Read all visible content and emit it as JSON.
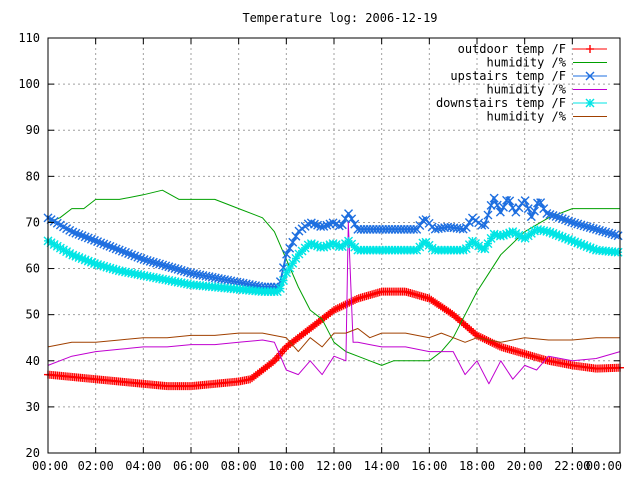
{
  "chart_data": {
    "type": "line",
    "title": "Temperature log: 2006-12-19",
    "xlabel": "",
    "ylabel": "",
    "x_ticks": [
      "00:00",
      "02:00",
      "04:00",
      "06:00",
      "08:00",
      "10:00",
      "12:00",
      "14:00",
      "16:00",
      "18:00",
      "20:00",
      "22:00",
      "00:00"
    ],
    "y_ticks": [
      20,
      30,
      40,
      50,
      60,
      70,
      80,
      90,
      100,
      110
    ],
    "xlim_hours": [
      0,
      24
    ],
    "ylim": [
      20,
      110
    ],
    "grid": true,
    "legend_position": "top-right",
    "series": [
      {
        "name": "outdoor temp /F",
        "color": "#ff0000",
        "marker": "plus",
        "hours": [
          0,
          1,
          2,
          3,
          4,
          5,
          6,
          7,
          8,
          8.5,
          9,
          9.5,
          10,
          11,
          12,
          13,
          14,
          15,
          16,
          17,
          18,
          19,
          20,
          21,
          22,
          23,
          24
        ],
        "values": [
          37,
          36.5,
          36,
          35.5,
          35,
          34.5,
          34.5,
          35,
          35.5,
          36,
          38,
          40,
          43,
          47,
          51,
          53.5,
          55,
          55,
          53.5,
          50,
          45.5,
          43,
          41.5,
          40,
          39,
          38.3,
          38.5
        ]
      },
      {
        "name": "humidity /%",
        "color": "#00a000",
        "marker": "none",
        "hours": [
          0,
          0.5,
          1,
          1.5,
          2,
          3,
          4,
          4.8,
          5.5,
          6,
          7,
          7.5,
          8,
          9,
          9.5,
          10,
          10.5,
          11,
          11.5,
          12,
          12.5,
          13,
          13.5,
          14,
          14.5,
          15,
          15.5,
          16,
          16.5,
          17,
          17.5,
          18,
          18.5,
          19,
          20,
          21,
          22,
          23,
          24
        ],
        "values": [
          70,
          71,
          73,
          73,
          75,
          75,
          76,
          77,
          75,
          75,
          75,
          74,
          73,
          71,
          68,
          62,
          56,
          51,
          49,
          44,
          42,
          41,
          40,
          39,
          40,
          40,
          40,
          40,
          42,
          45,
          50,
          55,
          59,
          63,
          68,
          71,
          73,
          73,
          73
        ]
      },
      {
        "name": "upstairs temp /F",
        "color": "#1e6fe0",
        "marker": "x",
        "hours": [
          0,
          1,
          2,
          3,
          4,
          5,
          6,
          7,
          8,
          9,
          9.7,
          10,
          10.5,
          11,
          11.5,
          12,
          12.3,
          12.6,
          13,
          13.5,
          14,
          14.5,
          15,
          15.5,
          15.8,
          16.2,
          16.8,
          17.5,
          17.8,
          18.3,
          18.7,
          19,
          19.3,
          19.6,
          20,
          20.3,
          20.6,
          20.9,
          21.5,
          22,
          23,
          24
        ],
        "values": [
          71,
          68,
          66,
          64,
          62,
          60.5,
          59,
          58,
          57,
          56,
          56,
          63,
          68,
          70,
          69,
          70,
          69,
          72,
          68.5,
          68.5,
          68.5,
          68.5,
          68.5,
          68.5,
          71,
          68.5,
          69,
          68.5,
          71,
          69,
          75.5,
          72,
          75.5,
          72,
          75,
          71,
          75,
          72,
          71,
          70,
          68.5,
          67
        ]
      },
      {
        "name": "humidity /%",
        "color": "#c000d0",
        "marker": "none",
        "hours": [
          0,
          1,
          2,
          3,
          4,
          5,
          6,
          7,
          8,
          9,
          9.5,
          10,
          10.5,
          11,
          11.5,
          12,
          12.5,
          12.6,
          12.8,
          13,
          13.5,
          14,
          15,
          16,
          17,
          17.5,
          18,
          18.5,
          19,
          19.5,
          20,
          20.5,
          21,
          22,
          23,
          24
        ],
        "values": [
          39,
          41,
          42,
          42.5,
          43,
          43,
          43.5,
          43.5,
          44,
          44.5,
          44,
          38,
          37,
          40,
          37,
          41,
          40,
          70,
          44,
          44,
          43.5,
          43,
          43,
          42,
          42,
          37,
          40,
          35,
          40,
          36,
          39,
          38,
          41,
          40,
          40.5,
          42
        ]
      },
      {
        "name": "downstairs temp /F",
        "color": "#00e5e5",
        "marker": "star",
        "hours": [
          0,
          1,
          2,
          3,
          4,
          5,
          6,
          7,
          8,
          9,
          9.7,
          10,
          10.5,
          11,
          11.5,
          12,
          12.3,
          12.6,
          13,
          13.5,
          14,
          14.5,
          15,
          15.5,
          15.8,
          16.2,
          16.8,
          17.5,
          17.8,
          18.3,
          18.7,
          19,
          19.5,
          20,
          20.5,
          21,
          22,
          23,
          24
        ],
        "values": [
          66,
          63,
          61,
          59.5,
          58.5,
          57.5,
          56.5,
          56,
          55.5,
          55,
          55,
          59,
          63,
          65.5,
          64.5,
          65.5,
          64.5,
          66,
          64,
          64,
          64,
          64,
          64,
          64,
          66,
          64,
          64,
          64,
          66,
          64,
          67.5,
          67,
          68,
          66.5,
          68.5,
          68,
          66,
          64,
          63.5
        ]
      },
      {
        "name": "humidity /%",
        "color": "#a04000",
        "marker": "none",
        "hours": [
          0,
          1,
          2,
          3,
          4,
          5,
          6,
          7,
          8,
          9,
          10,
          10.5,
          11,
          11.5,
          12,
          12.5,
          13,
          13.5,
          14,
          15,
          16,
          16.5,
          17,
          17.5,
          18,
          19,
          20,
          21,
          22,
          23,
          24
        ],
        "values": [
          43,
          44,
          44,
          44.5,
          45,
          45,
          45.5,
          45.5,
          46,
          46,
          45,
          42,
          45,
          43,
          46,
          46,
          47,
          45,
          46,
          46,
          45,
          46,
          45,
          44,
          45,
          44,
          45,
          44.5,
          44.5,
          45,
          45
        ]
      }
    ]
  }
}
